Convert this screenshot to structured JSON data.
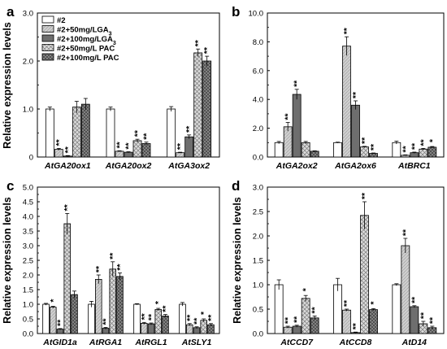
{
  "legend": {
    "entries": [
      "#2",
      "#2+50mg/LGA",
      "#2+100mg/LGA",
      "#2+50mg/L PAC",
      "#2+100mg/L PAC"
    ],
    "subscripts": [
      "",
      "3",
      "3",
      "",
      ""
    ]
  },
  "series_styles": [
    {
      "fill": "#ffffff",
      "pattern": "none"
    },
    {
      "fill": "#c8c8c8",
      "pattern": "none"
    },
    {
      "fill": "#6e6e6e",
      "pattern": "none"
    },
    {
      "fill": "#d8d8d8",
      "pattern": "crosshatch"
    },
    {
      "fill": "#8a8a8a",
      "pattern": "grid"
    }
  ],
  "chart_data": [
    {
      "panel": "a",
      "type": "bar",
      "ylabel": "Relative expression levels",
      "ylim": [
        0,
        3.0
      ],
      "yticks": [
        "0",
        "1.0",
        "2.0",
        "3.0"
      ],
      "categories": [
        "AtGA20ox1",
        "AtGA20ox2",
        "AtGA3ox2"
      ],
      "series": [
        {
          "name": "#2",
          "values": [
            1.0,
            1.0,
            1.0
          ],
          "errors": [
            0.04,
            0.04,
            0.05
          ],
          "stars": [
            "",
            "",
            ""
          ]
        },
        {
          "name": "#2+50mg/LGA3",
          "values": [
            0.16,
            0.12,
            0.09
          ],
          "errors": [
            0.02,
            0.01,
            0.01
          ],
          "stars": [
            "**",
            "**",
            "**"
          ]
        },
        {
          "name": "#2+100mg/LGA3",
          "values": [
            0.02,
            0.1,
            0.42
          ],
          "errors": [
            0.01,
            0.01,
            0.04
          ],
          "stars": [
            "**",
            "**",
            "**"
          ]
        },
        {
          "name": "#2+50mg/L PAC",
          "values": [
            1.04,
            0.34,
            2.17
          ],
          "errors": [
            0.12,
            0.03,
            0.08
          ],
          "stars": [
            "",
            "**",
            "**"
          ]
        },
        {
          "name": "#2+100mg/L PAC",
          "values": [
            1.1,
            0.28,
            2.0
          ],
          "errors": [
            0.12,
            0.03,
            0.1
          ],
          "stars": [
            "",
            "**",
            "**"
          ]
        }
      ]
    },
    {
      "panel": "b",
      "type": "bar",
      "ylabel": "",
      "ylim": [
        0,
        10.0
      ],
      "yticks": [
        "0.0",
        "2.0",
        "4.0",
        "6.0",
        "8.0",
        "10.0"
      ],
      "categories": [
        "AtGA2ox2",
        "AtGA2ox6",
        "AtBRC1"
      ],
      "series": [
        {
          "name": "#2",
          "values": [
            1.0,
            1.0,
            1.0
          ],
          "errors": [
            0.08,
            0.03,
            0.1
          ],
          "stars": [
            "",
            "",
            ""
          ]
        },
        {
          "name": "#2+50mg/LGA3",
          "values": [
            2.1,
            7.7,
            0.12
          ],
          "errors": [
            0.3,
            0.65,
            0.03
          ],
          "stars": [
            "**",
            "**",
            "**"
          ]
        },
        {
          "name": "#2+100mg/LGA3",
          "values": [
            4.35,
            3.6,
            0.3
          ],
          "errors": [
            0.35,
            0.3,
            0.04
          ],
          "stars": [
            "**",
            "**",
            "**"
          ]
        },
        {
          "name": "#2+50mg/L PAC",
          "values": [
            1.0,
            0.7,
            0.55
          ],
          "errors": [
            0.08,
            0.04,
            0.05
          ],
          "stars": [
            "",
            "**",
            "**"
          ]
        },
        {
          "name": "#2+100mg/L PAC",
          "values": [
            0.4,
            0.25,
            0.68
          ],
          "errors": [
            0.03,
            0.03,
            0.05
          ],
          "stars": [
            "",
            "**",
            "*"
          ]
        }
      ]
    },
    {
      "panel": "c",
      "type": "bar",
      "ylabel": "Relative expression levels",
      "ylim": [
        0,
        5.0
      ],
      "yticks": [
        "0.0",
        "0.5",
        "1.0",
        "1.5",
        "2.0",
        "2.5",
        "3.0",
        "3.5",
        "4.0",
        "4.5",
        "5.0"
      ],
      "categories": [
        "AtGID1a",
        "AtRGA1",
        "AtRGL1",
        "AtSLY1"
      ],
      "series": [
        {
          "name": "#2",
          "values": [
            1.0,
            1.0,
            1.0,
            1.0
          ],
          "errors": [
            0.03,
            0.1,
            0.02,
            0.06
          ],
          "stars": [
            "",
            "",
            "",
            ""
          ]
        },
        {
          "name": "#2+50mg/LGA3",
          "values": [
            0.9,
            1.85,
            0.35,
            0.3
          ],
          "errors": [
            0.03,
            0.15,
            0.03,
            0.04
          ],
          "stars": [
            "*",
            "**",
            "**",
            "**"
          ]
        },
        {
          "name": "#2+100mg/LGA3",
          "values": [
            0.15,
            0.18,
            0.33,
            0.2
          ],
          "errors": [
            0.02,
            0.03,
            0.03,
            0.03
          ],
          "stars": [
            "**",
            "**",
            "**",
            "**"
          ]
        },
        {
          "name": "#2+50mg/L PAC",
          "values": [
            3.75,
            2.2,
            0.82,
            0.45
          ],
          "errors": [
            0.35,
            0.25,
            0.04,
            0.05
          ],
          "stars": [
            "**",
            "**",
            "*",
            "*"
          ]
        },
        {
          "name": "#2+100mg/L PAC",
          "values": [
            1.33,
            1.95,
            0.6,
            0.3
          ],
          "errors": [
            0.12,
            0.12,
            0.05,
            0.04
          ],
          "stars": [
            "",
            "**",
            "**",
            "**"
          ]
        }
      ]
    },
    {
      "panel": "d",
      "type": "bar",
      "ylabel": "Relative expression levels",
      "ylim": [
        0,
        3.0
      ],
      "yticks": [
        "0.0",
        "0.5",
        "1.0",
        "1.5",
        "2.0",
        "2.5",
        "3.0"
      ],
      "categories": [
        "AtCCD7",
        "AtCCD8",
        "AtD14"
      ],
      "series": [
        {
          "name": "#2",
          "values": [
            1.0,
            1.0,
            1.0
          ],
          "errors": [
            0.1,
            0.13,
            0.02
          ],
          "stars": [
            "",
            "",
            ""
          ]
        },
        {
          "name": "#2+50mg/LGA3",
          "values": [
            0.13,
            0.48,
            1.8
          ],
          "errors": [
            0.02,
            0.02,
            0.15
          ],
          "stars": [
            "**",
            "**",
            "**"
          ]
        },
        {
          "name": "#2+100mg/LGA3",
          "values": [
            0.15,
            0.02,
            0.55
          ],
          "errors": [
            0.02,
            0.01,
            0.02
          ],
          "stars": [
            "**",
            "**",
            "**"
          ]
        },
        {
          "name": "#2+50mg/L PAC",
          "values": [
            0.72,
            2.42,
            0.2
          ],
          "errors": [
            0.06,
            0.28,
            0.05
          ],
          "stars": [
            "*",
            "**",
            "**"
          ]
        },
        {
          "name": "#2+100mg/L PAC",
          "values": [
            0.32,
            0.49,
            0.12
          ],
          "errors": [
            0.04,
            0.02,
            0.03
          ],
          "stars": [
            "**",
            "*",
            "**"
          ]
        }
      ]
    }
  ]
}
